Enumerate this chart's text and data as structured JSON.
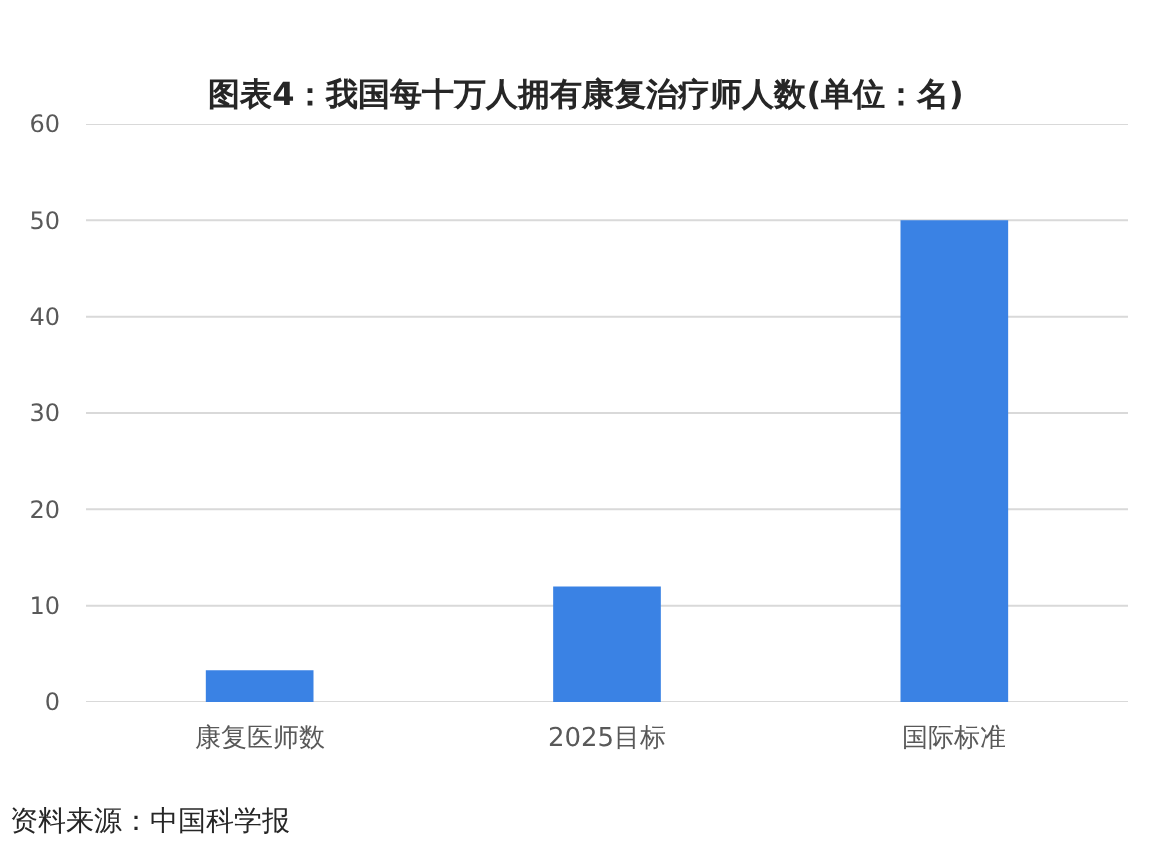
{
  "chart_data": {
    "type": "bar",
    "title": "图表4：我国每十万人拥有康复治疗师人数(单位：名)",
    "categories": [
      "康复医师数",
      "2025目标",
      "国际标准"
    ],
    "values": [
      3.3,
      12,
      50
    ],
    "color": "#3a82e4",
    "ylim": [
      0,
      60
    ],
    "yticks": [
      0,
      10,
      20,
      30,
      40,
      50,
      60
    ],
    "grid": "y",
    "annotations": [
      "资料来源：中国科学报"
    ]
  }
}
